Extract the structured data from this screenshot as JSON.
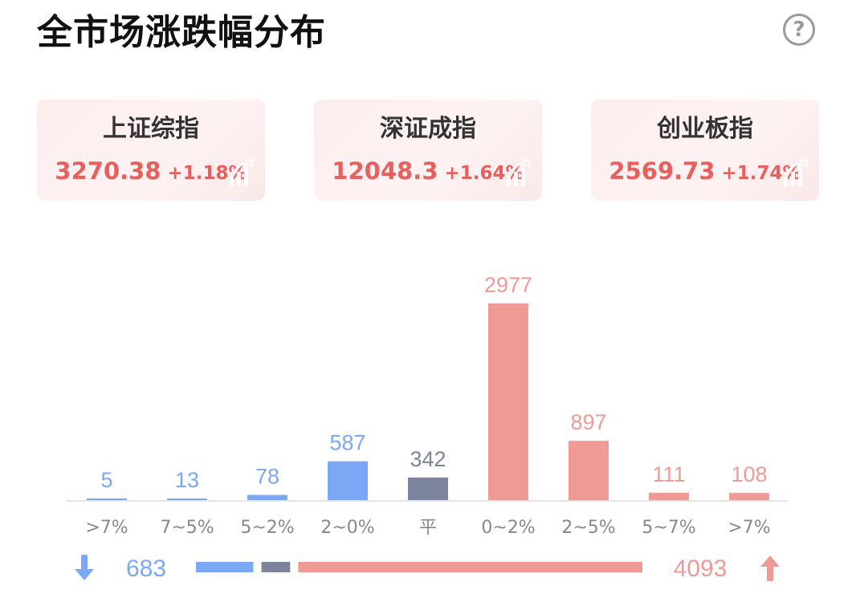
{
  "header": {
    "title": "全市场涨跌幅分布",
    "help_icon": "?"
  },
  "indices": [
    {
      "name": "上证综指",
      "value": "3270.38",
      "change": "+1.18%"
    },
    {
      "name": "深证成指",
      "value": "12048.3",
      "change": "+1.64%"
    },
    {
      "name": "创业板指",
      "value": "2569.73",
      "change": "+1.74%"
    }
  ],
  "colors": {
    "down": "#7aa8f5",
    "flat": "#7b849c",
    "up": "#f09a96",
    "up_text": "#e8605e",
    "axis": "#e6e6e6",
    "tick": "#888888"
  },
  "chart_data": {
    "type": "bar",
    "categories": [
      ">7%",
      "7~5%",
      "5~2%",
      "2~0%",
      "平",
      "0~2%",
      "2~5%",
      "5~7%",
      ">7%"
    ],
    "values": [
      5,
      13,
      78,
      587,
      342,
      2977,
      897,
      111,
      108
    ],
    "groups": [
      "down",
      "down",
      "down",
      "down",
      "flat",
      "up",
      "up",
      "up",
      "up"
    ],
    "title": "全市场涨跌幅分布",
    "ylim": [
      0,
      2977
    ],
    "grid": false,
    "legend": "none"
  },
  "summary": {
    "down_count": "683",
    "up_count": "4093",
    "flat_count": 342
  }
}
